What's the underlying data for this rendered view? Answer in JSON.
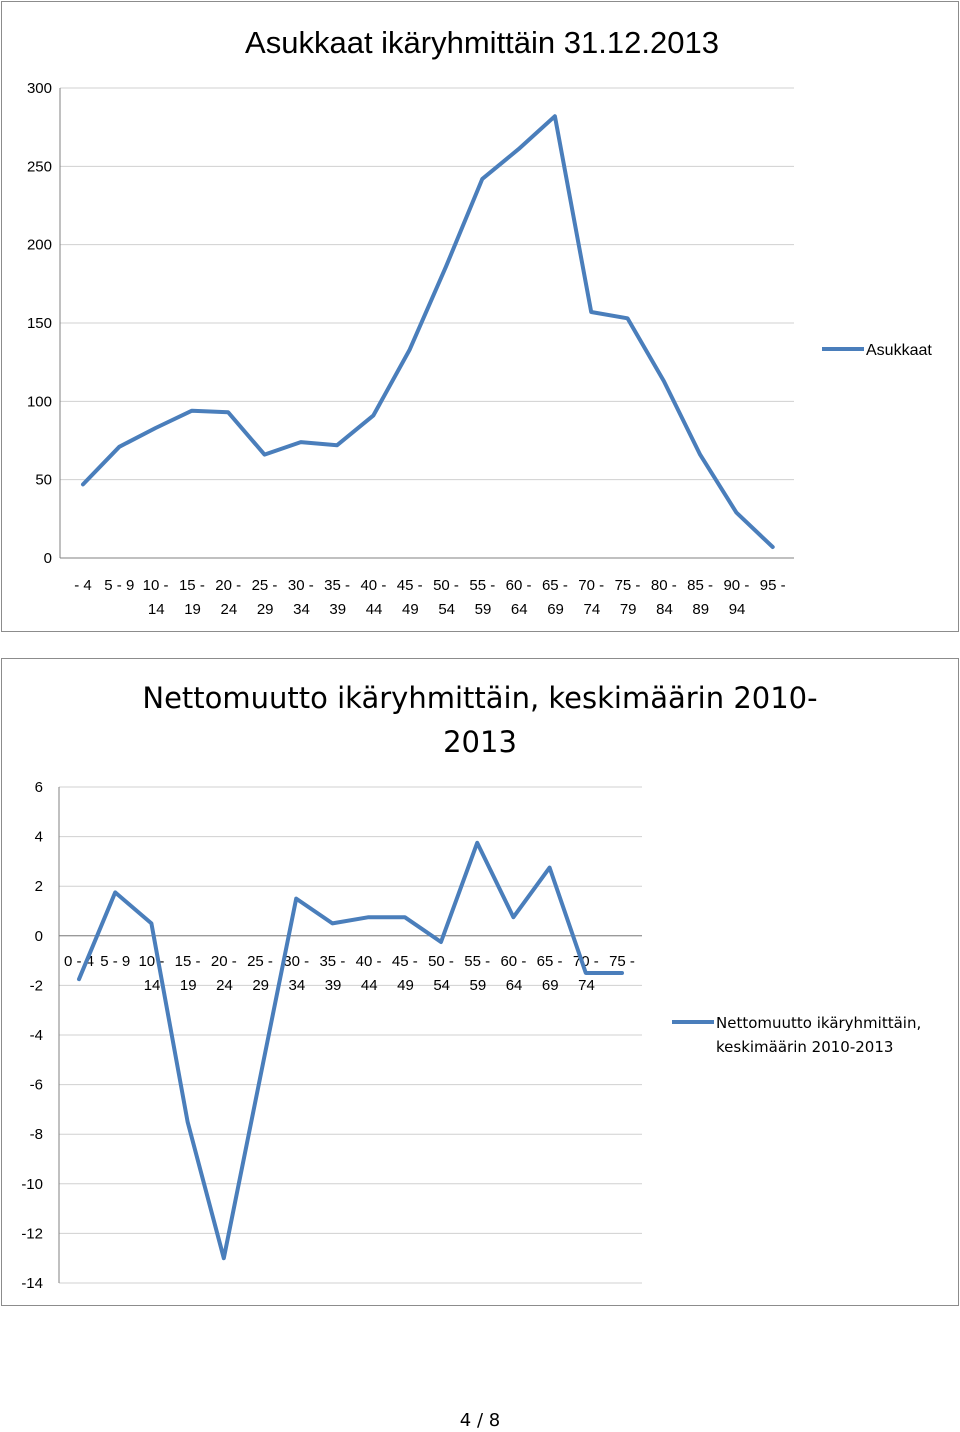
{
  "chart_data": [
    {
      "type": "line",
      "title": "Asukkaat ikäryhmittäin 31.12.2013",
      "xlabel": "",
      "ylabel": "",
      "categories": [
        [
          "- 4",
          ""
        ],
        [
          "5 - 9",
          ""
        ],
        [
          "10 -",
          "14"
        ],
        [
          "15 -",
          "19"
        ],
        [
          "20 -",
          "24"
        ],
        [
          "25 -",
          "29"
        ],
        [
          "30 -",
          "34"
        ],
        [
          "35 -",
          "39"
        ],
        [
          "40 -",
          "44"
        ],
        [
          "45 -",
          "49"
        ],
        [
          "50 -",
          "54"
        ],
        [
          "55 -",
          "59"
        ],
        [
          "60 -",
          "64"
        ],
        [
          "65 -",
          "69"
        ],
        [
          "70 -",
          "74"
        ],
        [
          "75 -",
          "79"
        ],
        [
          "80 -",
          "84"
        ],
        [
          "85 -",
          "89"
        ],
        [
          "90 -",
          "94"
        ],
        [
          "95 -",
          ""
        ]
      ],
      "series": [
        {
          "name": "Asukkaat",
          "values": [
            47,
            71,
            83,
            94,
            93,
            66,
            74,
            72,
            91,
            133,
            186,
            242,
            261,
            282,
            157,
            153,
            113,
            66,
            29,
            7
          ]
        }
      ],
      "ylim": [
        0,
        300
      ],
      "yticks": [
        0,
        50,
        100,
        150,
        200,
        250,
        300
      ],
      "grid": true,
      "legend_position": "right"
    },
    {
      "type": "line",
      "title": "Nettomuutto ikäryhmittäin, keskimäärin 2010-2013",
      "xlabel": "",
      "ylabel": "",
      "categories": [
        [
          "0 - 4",
          ""
        ],
        [
          "5 - 9",
          ""
        ],
        [
          "10 -",
          "14"
        ],
        [
          "15 -",
          "19"
        ],
        [
          "20 -",
          "24"
        ],
        [
          "25 -",
          "29"
        ],
        [
          "30 -",
          "34"
        ],
        [
          "35 -",
          "39"
        ],
        [
          "40 -",
          "44"
        ],
        [
          "45 -",
          "49"
        ],
        [
          "50 -",
          "54"
        ],
        [
          "55 -",
          "59"
        ],
        [
          "60 -",
          "64"
        ],
        [
          "65 -",
          "69"
        ],
        [
          "70 -",
          "74"
        ],
        [
          "75 -",
          ""
        ]
      ],
      "series": [
        {
          "name": "Nettomuutto ikäryhmittäin, keskimäärin 2010-2013",
          "values": [
            -1.75,
            1.75,
            0.5,
            -7.5,
            -13,
            -5.75,
            1.5,
            0.5,
            0.75,
            0.75,
            -0.25,
            3.75,
            0.75,
            2.75,
            -1.5,
            -1.5
          ]
        }
      ],
      "ylim": [
        -14,
        6
      ],
      "yticks": [
        -14,
        -12,
        -10,
        -8,
        -6,
        -4,
        -2,
        0,
        2,
        4,
        6
      ],
      "grid": true,
      "legend_position": "right"
    }
  ],
  "chart1": {
    "title": "Asukkaat ikäryhmittäin 31.12.2013",
    "legend": "Asukkaat"
  },
  "chart2": {
    "title_line1": "Nettomuutto ikäryhmittäin, keskimäärin 2010-",
    "title_line2": "2013",
    "legend_line1": "Nettomuutto ikäryhmittäin,",
    "legend_line2": "keskimäärin 2010-2013"
  },
  "page": {
    "number": "4 / 8"
  },
  "colors": {
    "series": "#4a7ebb",
    "grid": "#d0d0d0",
    "border": "#8c8c8c"
  }
}
